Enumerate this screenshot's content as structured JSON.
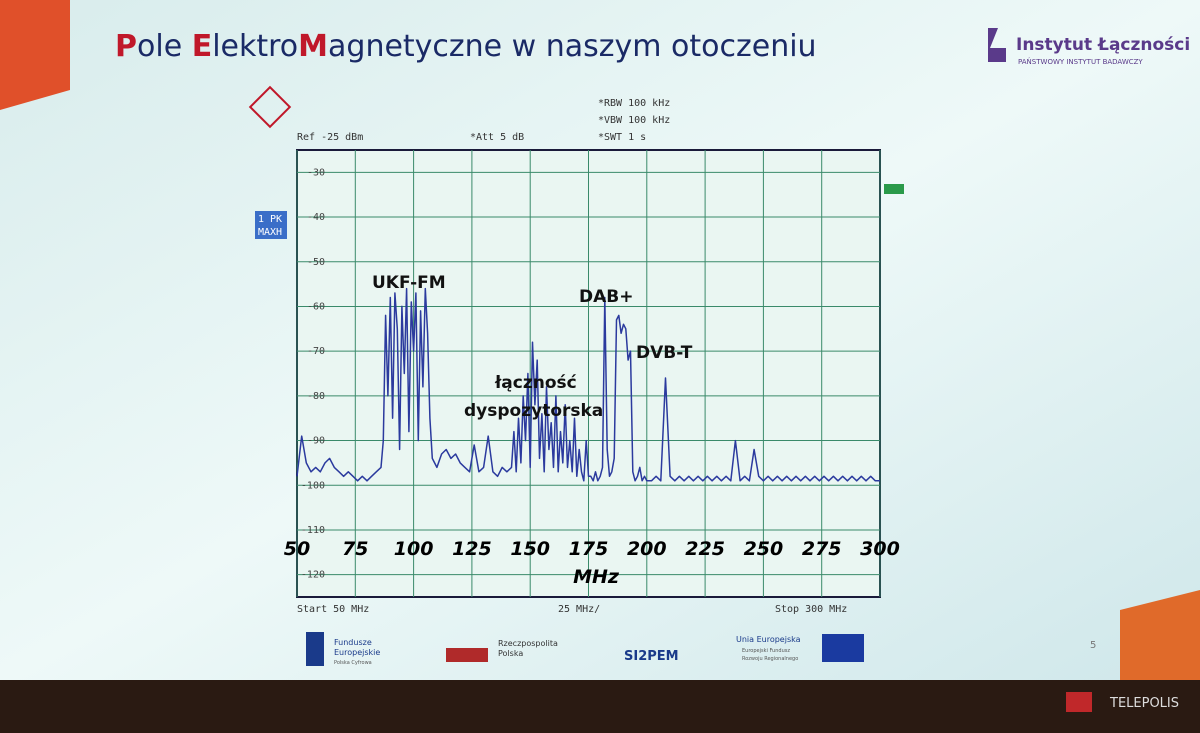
{
  "slide": {
    "title_parts": [
      "P",
      "ole ",
      "E",
      "lektro",
      "M",
      "agnetyczne w naszym otoczeniu"
    ],
    "logo": "Instytut Łączności",
    "logo_sub": "PAŃSTWOWY INSTYTUT BADAWCZY",
    "footer": [
      "Fundusze",
      "Europejskie",
      "Polska Cyfrowa",
      "Rzeczpospolita",
      "Polska",
      "SI2PEM",
      "Unia Europejska",
      "Europejski Fundusz",
      "Rozwoju Regionalnego"
    ],
    "page_number": "5",
    "watermark": "TELEPOLIS"
  },
  "chart_data": {
    "type": "line",
    "header": [
      "Ref -25 dBm",
      "*Att 5 dB",
      "*RBW 100 kHz",
      "*VBW 100 kHz",
      "*SWT 1 s"
    ],
    "side": [
      "1 PK",
      "MAXH"
    ],
    "footer": [
      "Start 50 MHz",
      "25 MHz/",
      "Stop 300 MHz"
    ],
    "xlabel": "MHz",
    "annotations": [
      "UKF-FM",
      "DAB+",
      "DVB-T",
      "łączność",
      "dyspozytorska"
    ],
    "color": "#2b3a9e",
    "xlim": [
      50,
      300
    ],
    "xticks": [
      50,
      75,
      100,
      125,
      150,
      175,
      200,
      225,
      250,
      275,
      300
    ],
    "ylim": [
      -125,
      -25
    ],
    "yticks": [
      -30,
      -40,
      -50,
      -60,
      -70,
      -80,
      -90,
      -100,
      -110,
      -120
    ],
    "grid": true,
    "x": [
      50,
      52,
      54,
      56,
      58,
      60,
      62,
      64,
      66,
      68,
      70,
      72,
      74,
      76,
      78,
      80,
      82,
      84,
      86,
      87,
      88,
      89,
      90,
      91,
      92,
      93,
      94,
      95,
      96,
      97,
      98,
      99,
      100,
      101,
      102,
      103,
      104,
      105,
      106,
      107,
      108,
      110,
      112,
      114,
      116,
      118,
      120,
      122,
      124,
      126,
      128,
      130,
      132,
      134,
      136,
      138,
      140,
      142,
      143,
      144,
      145,
      146,
      147,
      148,
      149,
      150,
      151,
      152,
      153,
      154,
      155,
      156,
      157,
      158,
      159,
      160,
      161,
      162,
      163,
      164,
      165,
      166,
      167,
      168,
      169,
      170,
      171,
      172,
      173,
      174,
      175,
      176,
      177,
      178,
      179,
      180,
      181,
      182,
      183,
      184,
      185,
      186,
      187,
      188,
      189,
      190,
      191,
      192,
      193,
      194,
      195,
      196,
      197,
      198,
      199,
      200,
      202,
      204,
      206,
      208,
      210,
      212,
      214,
      216,
      218,
      220,
      222,
      224,
      226,
      228,
      230,
      232,
      234,
      236,
      238,
      240,
      242,
      244,
      246,
      248,
      250,
      252,
      254,
      256,
      258,
      260,
      262,
      264,
      266,
      268,
      270,
      272,
      274,
      276,
      278,
      280,
      282,
      284,
      286,
      288,
      290,
      292,
      294,
      296,
      298,
      300
    ],
    "values": [
      -98,
      -89,
      -95,
      -97,
      -96,
      -97,
      -95,
      -94,
      -96,
      -97,
      -98,
      -97,
      -98,
      -99,
      -98,
      -99,
      -98,
      -97,
      -96,
      -90,
      -62,
      -80,
      -58,
      -85,
      -57,
      -65,
      -92,
      -60,
      -75,
      -56,
      -88,
      -59,
      -70,
      -57,
      -90,
      -61,
      -78,
      -56,
      -66,
      -85,
      -94,
      -96,
      -93,
      -92,
      -94,
      -93,
      -95,
      -96,
      -97,
      -91,
      -97,
      -96,
      -89,
      -97,
      -98,
      -96,
      -97,
      -96,
      -88,
      -97,
      -85,
      -95,
      -80,
      -90,
      -75,
      -96,
      -68,
      -82,
      -72,
      -94,
      -84,
      -97,
      -78,
      -92,
      -86,
      -96,
      -80,
      -97,
      -88,
      -95,
      -82,
      -96,
      -90,
      -97,
      -85,
      -98,
      -92,
      -97,
      -99,
      -90,
      -98,
      -98,
      -99,
      -97,
      -99,
      -98,
      -96,
      -58,
      -92,
      -98,
      -97,
      -94,
      -63,
      -62,
      -66,
      -64,
      -65,
      -72,
      -70,
      -97,
      -99,
      -98,
      -96,
      -99,
      -98,
      -99,
      -99,
      -98,
      -99,
      -76,
      -98,
      -99,
      -98,
      -99,
      -98,
      -99,
      -98,
      -99,
      -98,
      -99,
      -98,
      -99,
      -98,
      -99,
      -90,
      -99,
      -98,
      -99,
      -92,
      -98,
      -99,
      -98,
      -99,
      -98,
      -99,
      -98,
      -99,
      -98,
      -99,
      -98,
      -99,
      -98,
      -99,
      -98,
      -99,
      -98,
      -99,
      -98,
      -99,
      -98,
      -99,
      -98,
      -99,
      -98,
      -99,
      -99
    ]
  }
}
